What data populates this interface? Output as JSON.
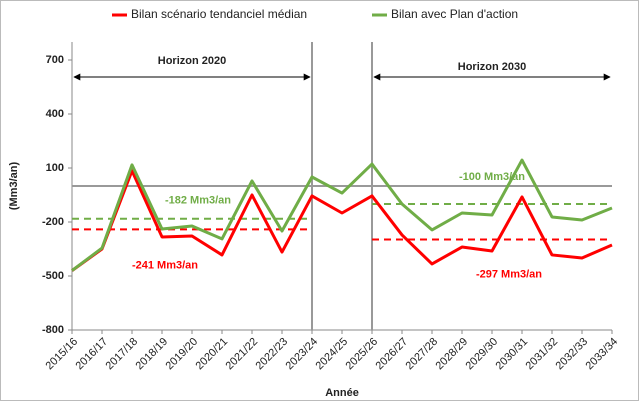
{
  "chart_data": {
    "type": "line",
    "x_label": "Année",
    "y_label": "(Mm3/an)",
    "categories": [
      "2015/16",
      "2016/17",
      "2017/18",
      "2018/19",
      "2019/20",
      "2020/21",
      "2021/22",
      "2022/23",
      "2023/24",
      "2024/25",
      "2025/26",
      "2026/27",
      "2027/28",
      "2028/29",
      "2029/30",
      "2030/31",
      "2031/32",
      "2032/33",
      "2033/34"
    ],
    "series": [
      {
        "name": "Bilan scénario tendanciel médian",
        "color": "#ff0000",
        "values": [
          -470,
          -350,
          85,
          -283,
          -278,
          -383,
          -50,
          -367,
          -55,
          -150,
          -55,
          -272,
          -433,
          -339,
          -361,
          -61,
          -383,
          -400,
          -328
        ]
      },
      {
        "name": "Bilan avec Plan d'action",
        "color": "#70ad47",
        "values": [
          -470,
          -345,
          117,
          -239,
          -222,
          -294,
          28,
          -250,
          50,
          -39,
          122,
          -100,
          -244,
          -150,
          -161,
          144,
          -172,
          -189,
          -122
        ]
      }
    ],
    "ylim": [
      -800,
      800
    ],
    "yticks": [
      -800,
      -500,
      -200,
      100,
      400,
      700
    ],
    "baseline": 0,
    "reference_lines": [
      {
        "value": -241,
        "label": "-241 Mm3/an",
        "from": "2015/16",
        "to": "2023/24",
        "color": "#ff0000"
      },
      {
        "value": -182,
        "label": "-182 Mm3/an",
        "from": "2015/16",
        "to": "2023/24",
        "color": "#70ad47"
      },
      {
        "value": -100,
        "label": "-100 Mm3/an",
        "from": "2025/26",
        "to": "2033/34",
        "color": "#70ad47"
      },
      {
        "value": -297,
        "label": "-297 Mm3/an",
        "from": "2025/26",
        "to": "2033/34",
        "color": "#ff0000"
      }
    ],
    "horizons": [
      {
        "label": "Horizon 2020",
        "from": "2015/16",
        "to": "2023/24"
      },
      {
        "label": "Horizon 2030",
        "from": "2025/26",
        "to": "2033/34"
      }
    ]
  }
}
